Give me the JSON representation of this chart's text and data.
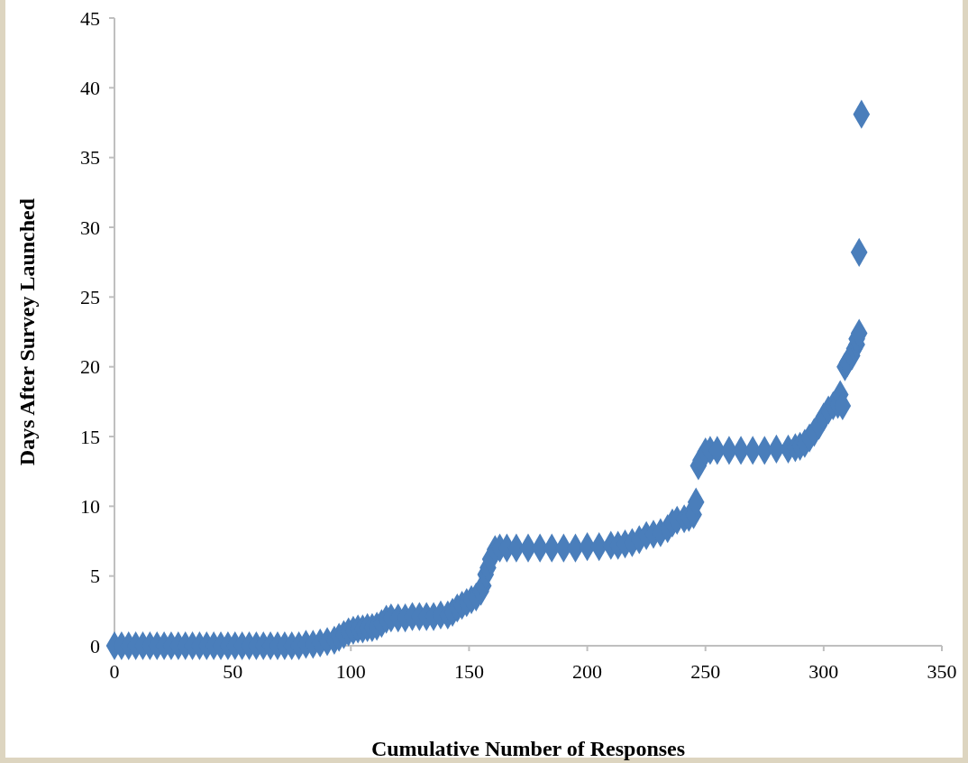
{
  "chart_data": {
    "type": "scatter",
    "xlabel": "Cumulative Number of Responses",
    "ylabel": "Days After Survey Launched",
    "xlim": [
      0,
      350
    ],
    "xticks": [
      0,
      50,
      100,
      150,
      200,
      250,
      300,
      350
    ],
    "ylim": [
      0,
      45
    ],
    "yticks": [
      0,
      5,
      10,
      15,
      20,
      25,
      30,
      35,
      40,
      45
    ],
    "grid": false,
    "marker": "diamond",
    "series": [
      {
        "color": "#4a7ebb",
        "x": [
          0,
          3,
          6,
          9,
          12,
          15,
          18,
          21,
          24,
          27,
          30,
          33,
          36,
          39,
          42,
          45,
          48,
          51,
          54,
          57,
          60,
          63,
          66,
          69,
          72,
          75,
          78,
          81,
          84,
          87,
          90,
          93,
          95,
          97,
          99,
          101,
          103,
          105,
          107,
          109,
          111,
          113,
          115,
          117,
          120,
          123,
          126,
          129,
          132,
          135,
          138,
          141,
          143,
          145,
          147,
          149,
          151,
          153,
          155,
          156,
          157,
          158,
          159,
          161,
          163,
          166,
          170,
          175,
          180,
          185,
          190,
          195,
          200,
          205,
          210,
          213,
          216,
          219,
          222,
          225,
          228,
          231,
          234,
          236,
          238,
          241,
          243,
          245,
          246,
          247,
          248,
          250,
          252,
          255,
          260,
          265,
          270,
          275,
          280,
          285,
          288,
          290,
          292,
          294,
          296,
          298,
          300,
          302,
          304,
          306,
          307,
          308,
          309,
          310,
          312,
          313,
          314,
          314,
          315,
          315,
          316
        ],
        "values": [
          0,
          0,
          0,
          0,
          0,
          0,
          0,
          0,
          0,
          0,
          0,
          0,
          0,
          0,
          0,
          0,
          0,
          0,
          0,
          0,
          0,
          0,
          0,
          0,
          0,
          0,
          0,
          0.1,
          0.1,
          0.2,
          0.3,
          0.4,
          0.6,
          0.8,
          1.0,
          1.1,
          1.2,
          1.2,
          1.3,
          1.3,
          1.4,
          1.6,
          1.9,
          2.0,
          2.0,
          2.0,
          2.1,
          2.1,
          2.1,
          2.1,
          2.2,
          2.2,
          2.4,
          2.7,
          2.9,
          3.1,
          3.3,
          3.5,
          3.9,
          4.3,
          5.1,
          5.6,
          6.2,
          6.9,
          7.0,
          7.0,
          7.0,
          7.0,
          7.0,
          7.0,
          7.0,
          7.0,
          7.1,
          7.1,
          7.2,
          7.2,
          7.3,
          7.4,
          7.6,
          7.9,
          8.0,
          8.1,
          8.4,
          8.8,
          9.0,
          9.1,
          9.2,
          9.4,
          10.3,
          12.9,
          13.3,
          13.9,
          14.0,
          14.0,
          14.0,
          14.0,
          14.0,
          14.0,
          14.1,
          14.1,
          14.2,
          14.3,
          14.5,
          14.9,
          15.3,
          15.8,
          16.4,
          16.9,
          17.2,
          17.3,
          18.0,
          17.2,
          20.0,
          20.3,
          20.8,
          21.3,
          21.6,
          22.0,
          22.4,
          28.2,
          38.1
        ]
      }
    ]
  }
}
